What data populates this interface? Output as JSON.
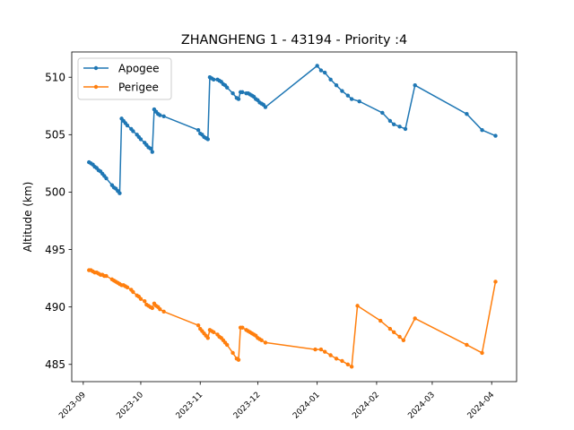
{
  "chart_data": {
    "type": "line",
    "title": "ZHANGHENG 1 - 43194 - Priority :4",
    "xlabel": "",
    "ylabel": "Altitude (km)",
    "xlim": [
      "2023-08-26",
      "2024-04-14"
    ],
    "ylim": [
      483.5,
      512.2
    ],
    "x_ticks": [
      "2023-09",
      "2023-10",
      "2023-11",
      "2023-12",
      "2024-01",
      "2024-02",
      "2024-03",
      "2024-04"
    ],
    "y_ticks": [
      485,
      490,
      495,
      500,
      505,
      510
    ],
    "grid": false,
    "legend_position": "top-left",
    "colors": {
      "Apogee": "#1f77b4",
      "Perigee": "#ff7f0e"
    },
    "series": [
      {
        "name": "Apogee",
        "points": [
          [
            "2023-09-04",
            502.6
          ],
          [
            "2023-09-05",
            502.5
          ],
          [
            "2023-09-06",
            502.4
          ],
          [
            "2023-09-07",
            502.2
          ],
          [
            "2023-09-08",
            502.1
          ],
          [
            "2023-09-09",
            501.9
          ],
          [
            "2023-09-10",
            501.8
          ],
          [
            "2023-09-11",
            501.6
          ],
          [
            "2023-09-12",
            501.4
          ],
          [
            "2023-09-13",
            501.2
          ],
          [
            "2023-09-16",
            500.6
          ],
          [
            "2023-09-17",
            500.4
          ],
          [
            "2023-09-18",
            500.3
          ],
          [
            "2023-09-19",
            500.1
          ],
          [
            "2023-09-20",
            499.9
          ],
          [
            "2023-09-21",
            506.4
          ],
          [
            "2023-09-22",
            506.2
          ],
          [
            "2023-09-23",
            506.0
          ],
          [
            "2023-09-24",
            505.8
          ],
          [
            "2023-09-26",
            505.5
          ],
          [
            "2023-09-27",
            505.3
          ],
          [
            "2023-09-29",
            505.0
          ],
          [
            "2023-09-30",
            504.8
          ],
          [
            "2023-10-01",
            504.6
          ],
          [
            "2023-10-03",
            504.3
          ],
          [
            "2023-10-04",
            504.1
          ],
          [
            "2023-10-05",
            503.9
          ],
          [
            "2023-10-06",
            503.8
          ],
          [
            "2023-10-07",
            503.5
          ],
          [
            "2023-10-08",
            507.2
          ],
          [
            "2023-10-09",
            507.0
          ],
          [
            "2023-10-10",
            506.8
          ],
          [
            "2023-10-11",
            506.7
          ],
          [
            "2023-10-13",
            506.6
          ],
          [
            "2023-10-31",
            505.4
          ],
          [
            "2023-11-01",
            505.1
          ],
          [
            "2023-11-02",
            505.0
          ],
          [
            "2023-11-03",
            504.8
          ],
          [
            "2023-11-04",
            504.7
          ],
          [
            "2023-11-05",
            504.6
          ],
          [
            "2023-11-06",
            510.0
          ],
          [
            "2023-11-07",
            509.9
          ],
          [
            "2023-11-08",
            509.8
          ],
          [
            "2023-11-10",
            509.8
          ],
          [
            "2023-11-11",
            509.7
          ],
          [
            "2023-11-12",
            509.6
          ],
          [
            "2023-11-13",
            509.4
          ],
          [
            "2023-11-14",
            509.3
          ],
          [
            "2023-11-15",
            509.1
          ],
          [
            "2023-11-18",
            508.6
          ],
          [
            "2023-11-20",
            508.2
          ],
          [
            "2023-11-21",
            508.1
          ],
          [
            "2023-11-22",
            508.7
          ],
          [
            "2023-11-23",
            508.7
          ],
          [
            "2023-11-25",
            508.6
          ],
          [
            "2023-11-26",
            508.6
          ],
          [
            "2023-11-27",
            508.5
          ],
          [
            "2023-11-28",
            508.4
          ],
          [
            "2023-11-29",
            508.3
          ],
          [
            "2023-11-30",
            508.1
          ],
          [
            "2023-12-01",
            508.0
          ],
          [
            "2023-12-02",
            507.8
          ],
          [
            "2023-12-03",
            507.7
          ],
          [
            "2023-12-04",
            507.6
          ],
          [
            "2023-12-05",
            507.4
          ],
          [
            "2024-01-01",
            511.0
          ],
          [
            "2024-01-03",
            510.6
          ],
          [
            "2024-01-05",
            510.4
          ],
          [
            "2024-01-08",
            509.8
          ],
          [
            "2024-01-11",
            509.3
          ],
          [
            "2024-01-14",
            508.8
          ],
          [
            "2024-01-17",
            508.4
          ],
          [
            "2024-01-19",
            508.1
          ],
          [
            "2024-01-23",
            507.9
          ],
          [
            "2024-02-04",
            506.9
          ],
          [
            "2024-02-08",
            506.2
          ],
          [
            "2024-02-10",
            505.9
          ],
          [
            "2024-02-13",
            505.7
          ],
          [
            "2024-02-16",
            505.5
          ],
          [
            "2024-02-21",
            509.3
          ],
          [
            "2024-03-19",
            506.8
          ],
          [
            "2024-03-27",
            505.4
          ],
          [
            "2024-04-03",
            504.9
          ]
        ]
      },
      {
        "name": "Perigee",
        "points": [
          [
            "2023-09-04",
            493.2
          ],
          [
            "2023-09-05",
            493.2
          ],
          [
            "2023-09-06",
            493.1
          ],
          [
            "2023-09-07",
            493.0
          ],
          [
            "2023-09-08",
            493.0
          ],
          [
            "2023-09-09",
            492.9
          ],
          [
            "2023-09-10",
            492.8
          ],
          [
            "2023-09-11",
            492.8
          ],
          [
            "2023-09-12",
            492.7
          ],
          [
            "2023-09-13",
            492.7
          ],
          [
            "2023-09-16",
            492.4
          ],
          [
            "2023-09-17",
            492.3
          ],
          [
            "2023-09-18",
            492.2
          ],
          [
            "2023-09-19",
            492.1
          ],
          [
            "2023-09-20",
            492.0
          ],
          [
            "2023-09-21",
            491.9
          ],
          [
            "2023-09-22",
            491.9
          ],
          [
            "2023-09-23",
            491.8
          ],
          [
            "2023-09-24",
            491.7
          ],
          [
            "2023-09-26",
            491.5
          ],
          [
            "2023-09-27",
            491.3
          ],
          [
            "2023-09-29",
            491.0
          ],
          [
            "2023-09-30",
            490.9
          ],
          [
            "2023-10-01",
            490.7
          ],
          [
            "2023-10-03",
            490.5
          ],
          [
            "2023-10-04",
            490.2
          ],
          [
            "2023-10-05",
            490.1
          ],
          [
            "2023-10-06",
            490.0
          ],
          [
            "2023-10-07",
            489.9
          ],
          [
            "2023-10-08",
            490.3
          ],
          [
            "2023-10-09",
            490.1
          ],
          [
            "2023-10-10",
            490.0
          ],
          [
            "2023-10-11",
            489.8
          ],
          [
            "2023-10-13",
            489.6
          ],
          [
            "2023-10-31",
            488.4
          ],
          [
            "2023-11-01",
            488.1
          ],
          [
            "2023-11-02",
            487.9
          ],
          [
            "2023-11-03",
            487.7
          ],
          [
            "2023-11-04",
            487.5
          ],
          [
            "2023-11-05",
            487.3
          ],
          [
            "2023-11-06",
            488.0
          ],
          [
            "2023-11-07",
            487.9
          ],
          [
            "2023-11-08",
            487.8
          ],
          [
            "2023-11-10",
            487.6
          ],
          [
            "2023-11-11",
            487.4
          ],
          [
            "2023-11-12",
            487.3
          ],
          [
            "2023-11-13",
            487.1
          ],
          [
            "2023-11-14",
            486.9
          ],
          [
            "2023-11-15",
            486.7
          ],
          [
            "2023-11-18",
            486.0
          ],
          [
            "2023-11-20",
            485.5
          ],
          [
            "2023-11-21",
            485.4
          ],
          [
            "2023-11-22",
            488.2
          ],
          [
            "2023-11-23",
            488.2
          ],
          [
            "2023-11-25",
            488.0
          ],
          [
            "2023-11-26",
            487.9
          ],
          [
            "2023-11-27",
            487.8
          ],
          [
            "2023-11-28",
            487.7
          ],
          [
            "2023-11-29",
            487.6
          ],
          [
            "2023-11-30",
            487.5
          ],
          [
            "2023-12-01",
            487.3
          ],
          [
            "2023-12-02",
            487.2
          ],
          [
            "2023-12-03",
            487.1
          ],
          [
            "2023-12-05",
            486.9
          ],
          [
            "2023-12-31",
            486.3
          ],
          [
            "2024-01-03",
            486.3
          ],
          [
            "2024-01-05",
            486.1
          ],
          [
            "2024-01-08",
            485.8
          ],
          [
            "2024-01-11",
            485.5
          ],
          [
            "2024-01-14",
            485.3
          ],
          [
            "2024-01-17",
            485.0
          ],
          [
            "2024-01-19",
            484.8
          ],
          [
            "2024-01-22",
            490.1
          ],
          [
            "2024-02-03",
            488.8
          ],
          [
            "2024-02-08",
            488.1
          ],
          [
            "2024-02-10",
            487.8
          ],
          [
            "2024-02-13",
            487.4
          ],
          [
            "2024-02-15",
            487.1
          ],
          [
            "2024-02-21",
            489.0
          ],
          [
            "2024-03-19",
            486.7
          ],
          [
            "2024-03-27",
            486.0
          ],
          [
            "2024-04-03",
            492.2
          ]
        ]
      }
    ]
  }
}
